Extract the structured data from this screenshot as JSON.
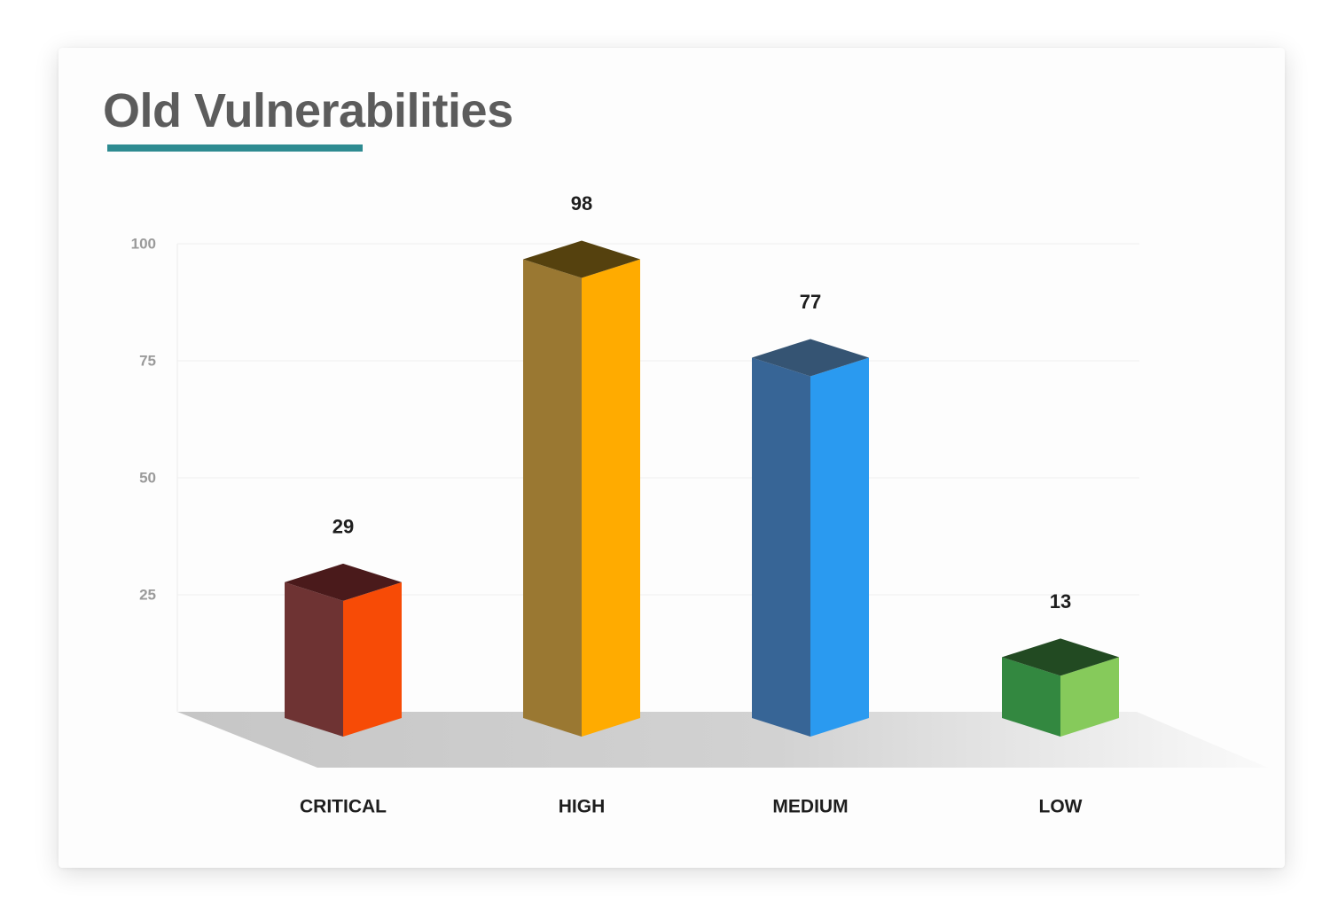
{
  "page": {
    "title": "Old Vulnerabilities",
    "accent_color": "#2e8b91"
  },
  "chart_data": {
    "type": "bar",
    "style": "3d-columns",
    "title": "Old Vulnerabilities",
    "categories": [
      "CRITICAL",
      "HIGH",
      "MEDIUM",
      "LOW"
    ],
    "values": [
      29,
      98,
      77,
      13
    ],
    "ylim": [
      0,
      100
    ],
    "yticks": [
      25,
      50,
      75,
      100
    ],
    "grid": true,
    "legend": "none",
    "colors": [
      {
        "front": "#f74b06",
        "side": "#6e3333",
        "top": "#4a1a1b"
      },
      {
        "front": "#ffab00",
        "side": "#9a7832",
        "top": "#55410e"
      },
      {
        "front": "#2a9af0",
        "side": "#376596",
        "top": "#355473"
      },
      {
        "front": "#86ca5b",
        "side": "#338840",
        "top": "#224a22"
      }
    ]
  }
}
